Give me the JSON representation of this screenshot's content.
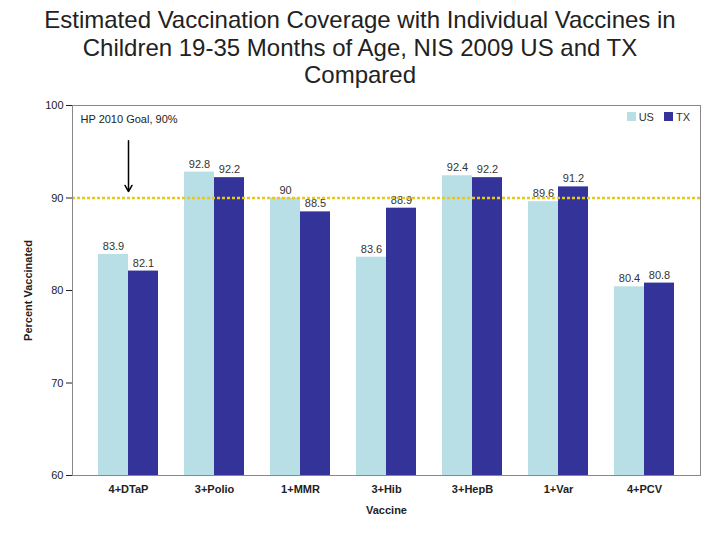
{
  "chart_data": {
    "type": "bar",
    "title": "Estimated Vaccination Coverage with Individual Vaccines in Children 19-35 Months of Age, NIS 2009 US and TX Compared",
    "x_label": "Vaccine",
    "y_label": "Percent Vaccinated",
    "categories": [
      "4+DTaP",
      "3+Polio",
      "1+MMR",
      "3+Hib",
      "3+HepB",
      "1+Var",
      "4+PCV"
    ],
    "series": [
      {
        "name": "US",
        "color": "#b7dfe5",
        "values": [
          83.9,
          92.8,
          90,
          83.6,
          92.4,
          89.6,
          80.4
        ]
      },
      {
        "name": "TX",
        "color": "#333399",
        "values": [
          82.1,
          92.2,
          88.5,
          88.9,
          92.2,
          91.2,
          80.8
        ]
      }
    ],
    "ylim": [
      60,
      100
    ],
    "yticks": [
      60,
      70,
      80,
      90,
      100
    ],
    "grid": false,
    "legend": "upper right",
    "data_labels": true,
    "goal_line": {
      "value": 90,
      "label": "HP 2010 Goal, 90%",
      "color": "#e8c81a"
    }
  }
}
